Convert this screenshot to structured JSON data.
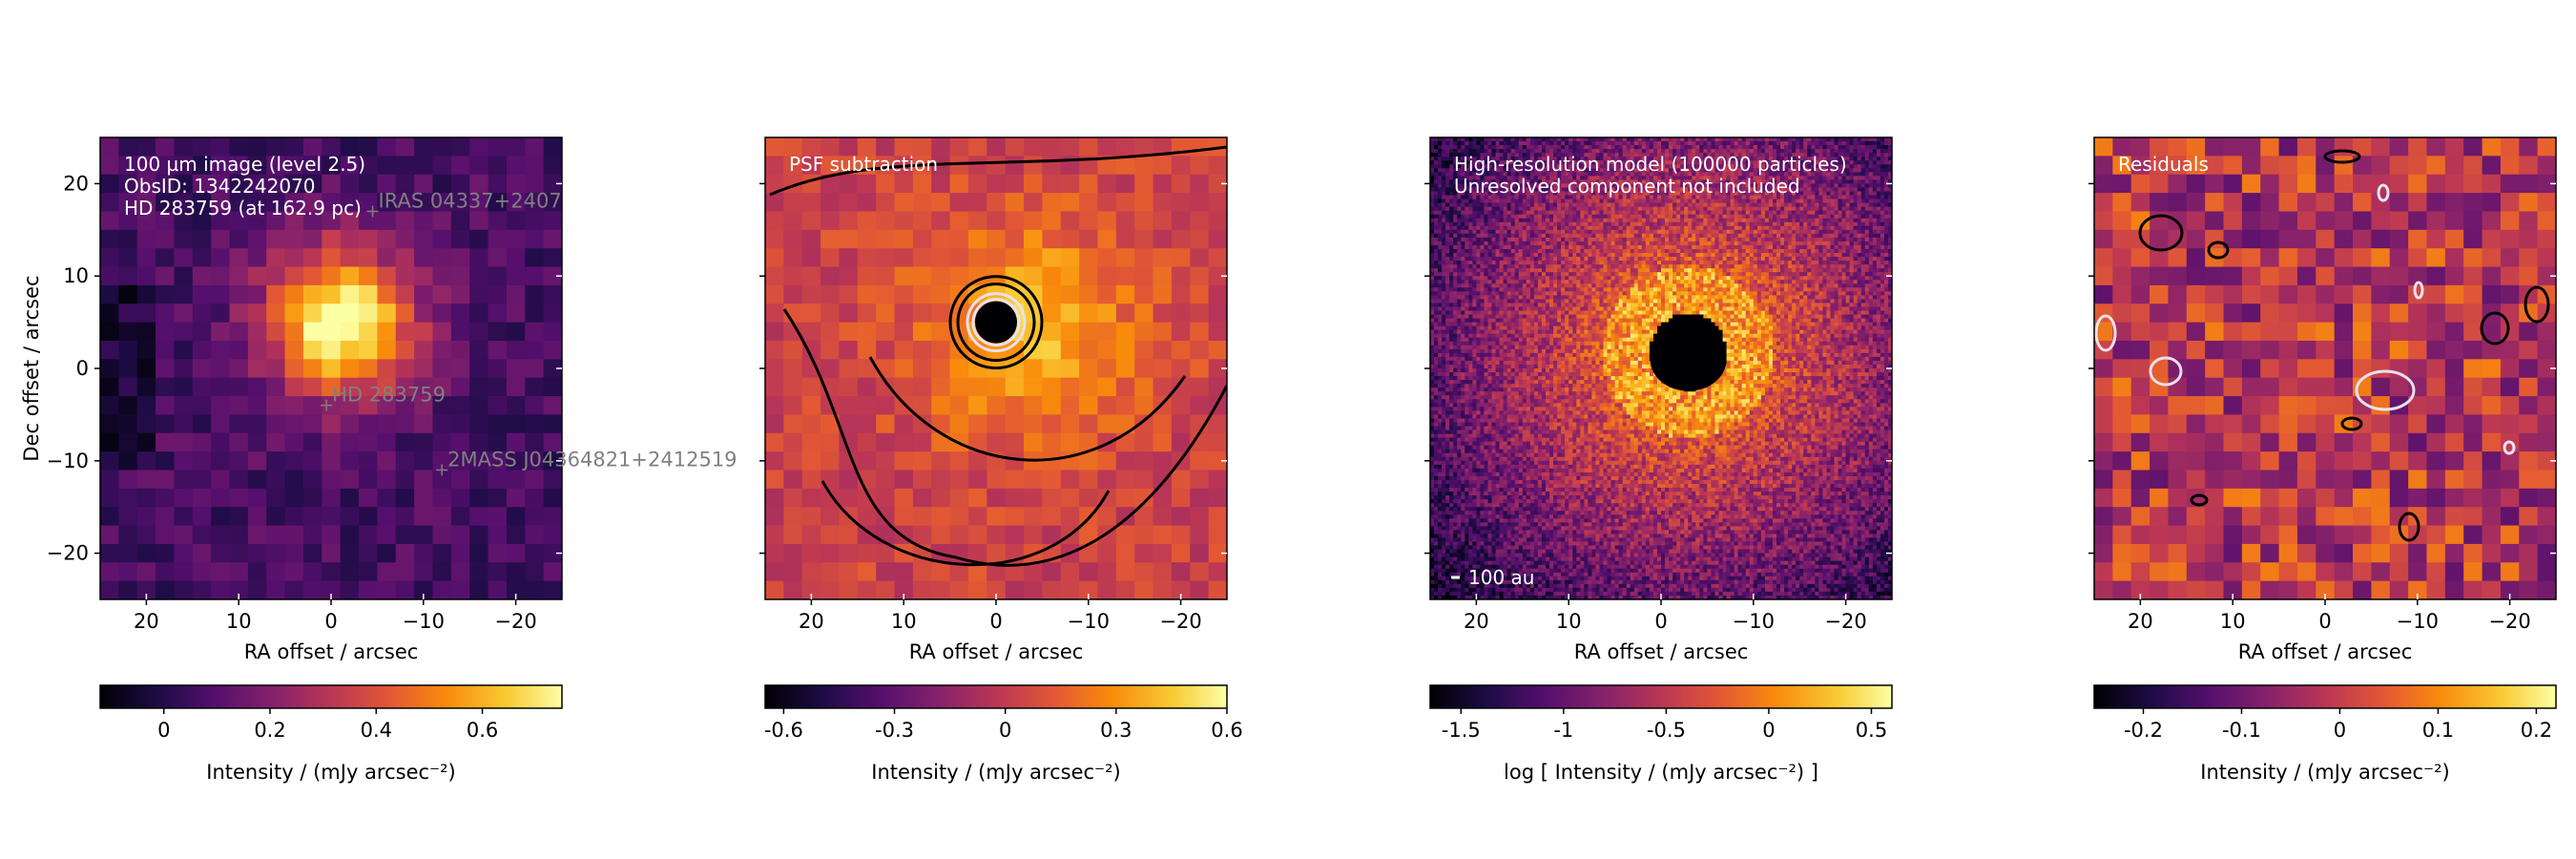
{
  "figure": {
    "colormap": "inferno",
    "colors": {
      "contour_dark": "#000000",
      "contour_light": "#e8e0f0",
      "marker": "#808080",
      "overlay_text": "#ffffff"
    }
  },
  "chart_data": [
    {
      "type": "heatmap",
      "title": "",
      "annotation_lines": [
        "100 µm image (level 2.5)",
        "ObsID: 1342242070",
        "HD 283759 (at 162.9 pc)"
      ],
      "xlabel": "RA offset / arcsec",
      "ylabel": "Dec offset / arcsec",
      "xlim": [
        25,
        -25
      ],
      "ylim": [
        -25,
        25
      ],
      "xticks": [
        20,
        10,
        0,
        -10,
        -20
      ],
      "xtick_labels": [
        "20",
        "10",
        "0",
        "−10",
        "−20"
      ],
      "yticks": [
        20,
        10,
        0,
        -10,
        -20
      ],
      "ytick_labels": [
        "20",
        "10",
        "0",
        "−10",
        "−20"
      ],
      "markers": [
        {
          "label": "IRAS 04337+2407",
          "x": -4.5,
          "y": 17
        },
        {
          "label": "HD 283759",
          "x": 0.5,
          "y": -4
        },
        {
          "label": "2MASS J04364821+2412519",
          "x": -12,
          "y": -11
        }
      ],
      "colorbar": {
        "label": "Intensity / (mJy arcsec⁻²)",
        "min": -0.12,
        "max": 0.75,
        "ticks": [
          0,
          0.2,
          0.4,
          0.6
        ],
        "tick_labels": [
          "0",
          "0.2",
          "0.4",
          "0.6"
        ]
      },
      "description_of_values": "diffuse emission, peak ~0.7 near (-1, 7), background ~0.1"
    },
    {
      "type": "heatmap",
      "annotation_lines": [
        "PSF subtraction"
      ],
      "xlabel": "RA offset / arcsec",
      "xlim": [
        25,
        -25
      ],
      "ylim": [
        -25,
        25
      ],
      "xticks": [
        20,
        10,
        0,
        -10,
        -20
      ],
      "xtick_labels": [
        "20",
        "10",
        "0",
        "−10",
        "−20"
      ],
      "contours": true,
      "colorbar": {
        "label": "Intensity / (mJy arcsec⁻²)",
        "min": -0.65,
        "max": 0.6,
        "ticks": [
          -0.6,
          -0.3,
          0,
          0.3,
          0.6
        ],
        "tick_labels": [
          "-0.6",
          "-0.3",
          "0",
          "0.3",
          "0.6"
        ]
      }
    },
    {
      "type": "heatmap",
      "annotation_lines": [
        "High-resolution model (100000 particles)",
        "Unresolved component not included"
      ],
      "scalebar_label": "100 au",
      "xlabel": "RA offset / arcsec",
      "xlim": [
        25,
        -25
      ],
      "ylim": [
        -25,
        25
      ],
      "xticks": [
        20,
        10,
        0,
        -10,
        -20
      ],
      "xtick_labels": [
        "20",
        "10",
        "0",
        "−10",
        "−20"
      ],
      "colorbar": {
        "label": "log [ Intensity / (mJy arcsec⁻²) ]",
        "min": -1.65,
        "max": 0.6,
        "ticks": [
          -1.5,
          -1,
          -0.5,
          0,
          0.5
        ],
        "tick_labels": [
          "-1.5",
          "-1",
          "-0.5",
          "0",
          "0.5"
        ]
      }
    },
    {
      "type": "heatmap",
      "annotation_lines": [
        "Residuals"
      ],
      "xlabel": "RA offset / arcsec",
      "xlim": [
        25,
        -25
      ],
      "ylim": [
        -25,
        25
      ],
      "xticks": [
        20,
        10,
        0,
        -10,
        -20
      ],
      "xtick_labels": [
        "20",
        "10",
        "0",
        "−10",
        "−20"
      ],
      "contours": true,
      "colorbar": {
        "label": "Intensity / (mJy arcsec⁻²)",
        "min": -0.25,
        "max": 0.22,
        "ticks": [
          -0.2,
          -0.1,
          0,
          0.1,
          0.2
        ],
        "tick_labels": [
          "-0.2",
          "-0.1",
          "0",
          "0.1",
          "0.2"
        ]
      }
    }
  ]
}
